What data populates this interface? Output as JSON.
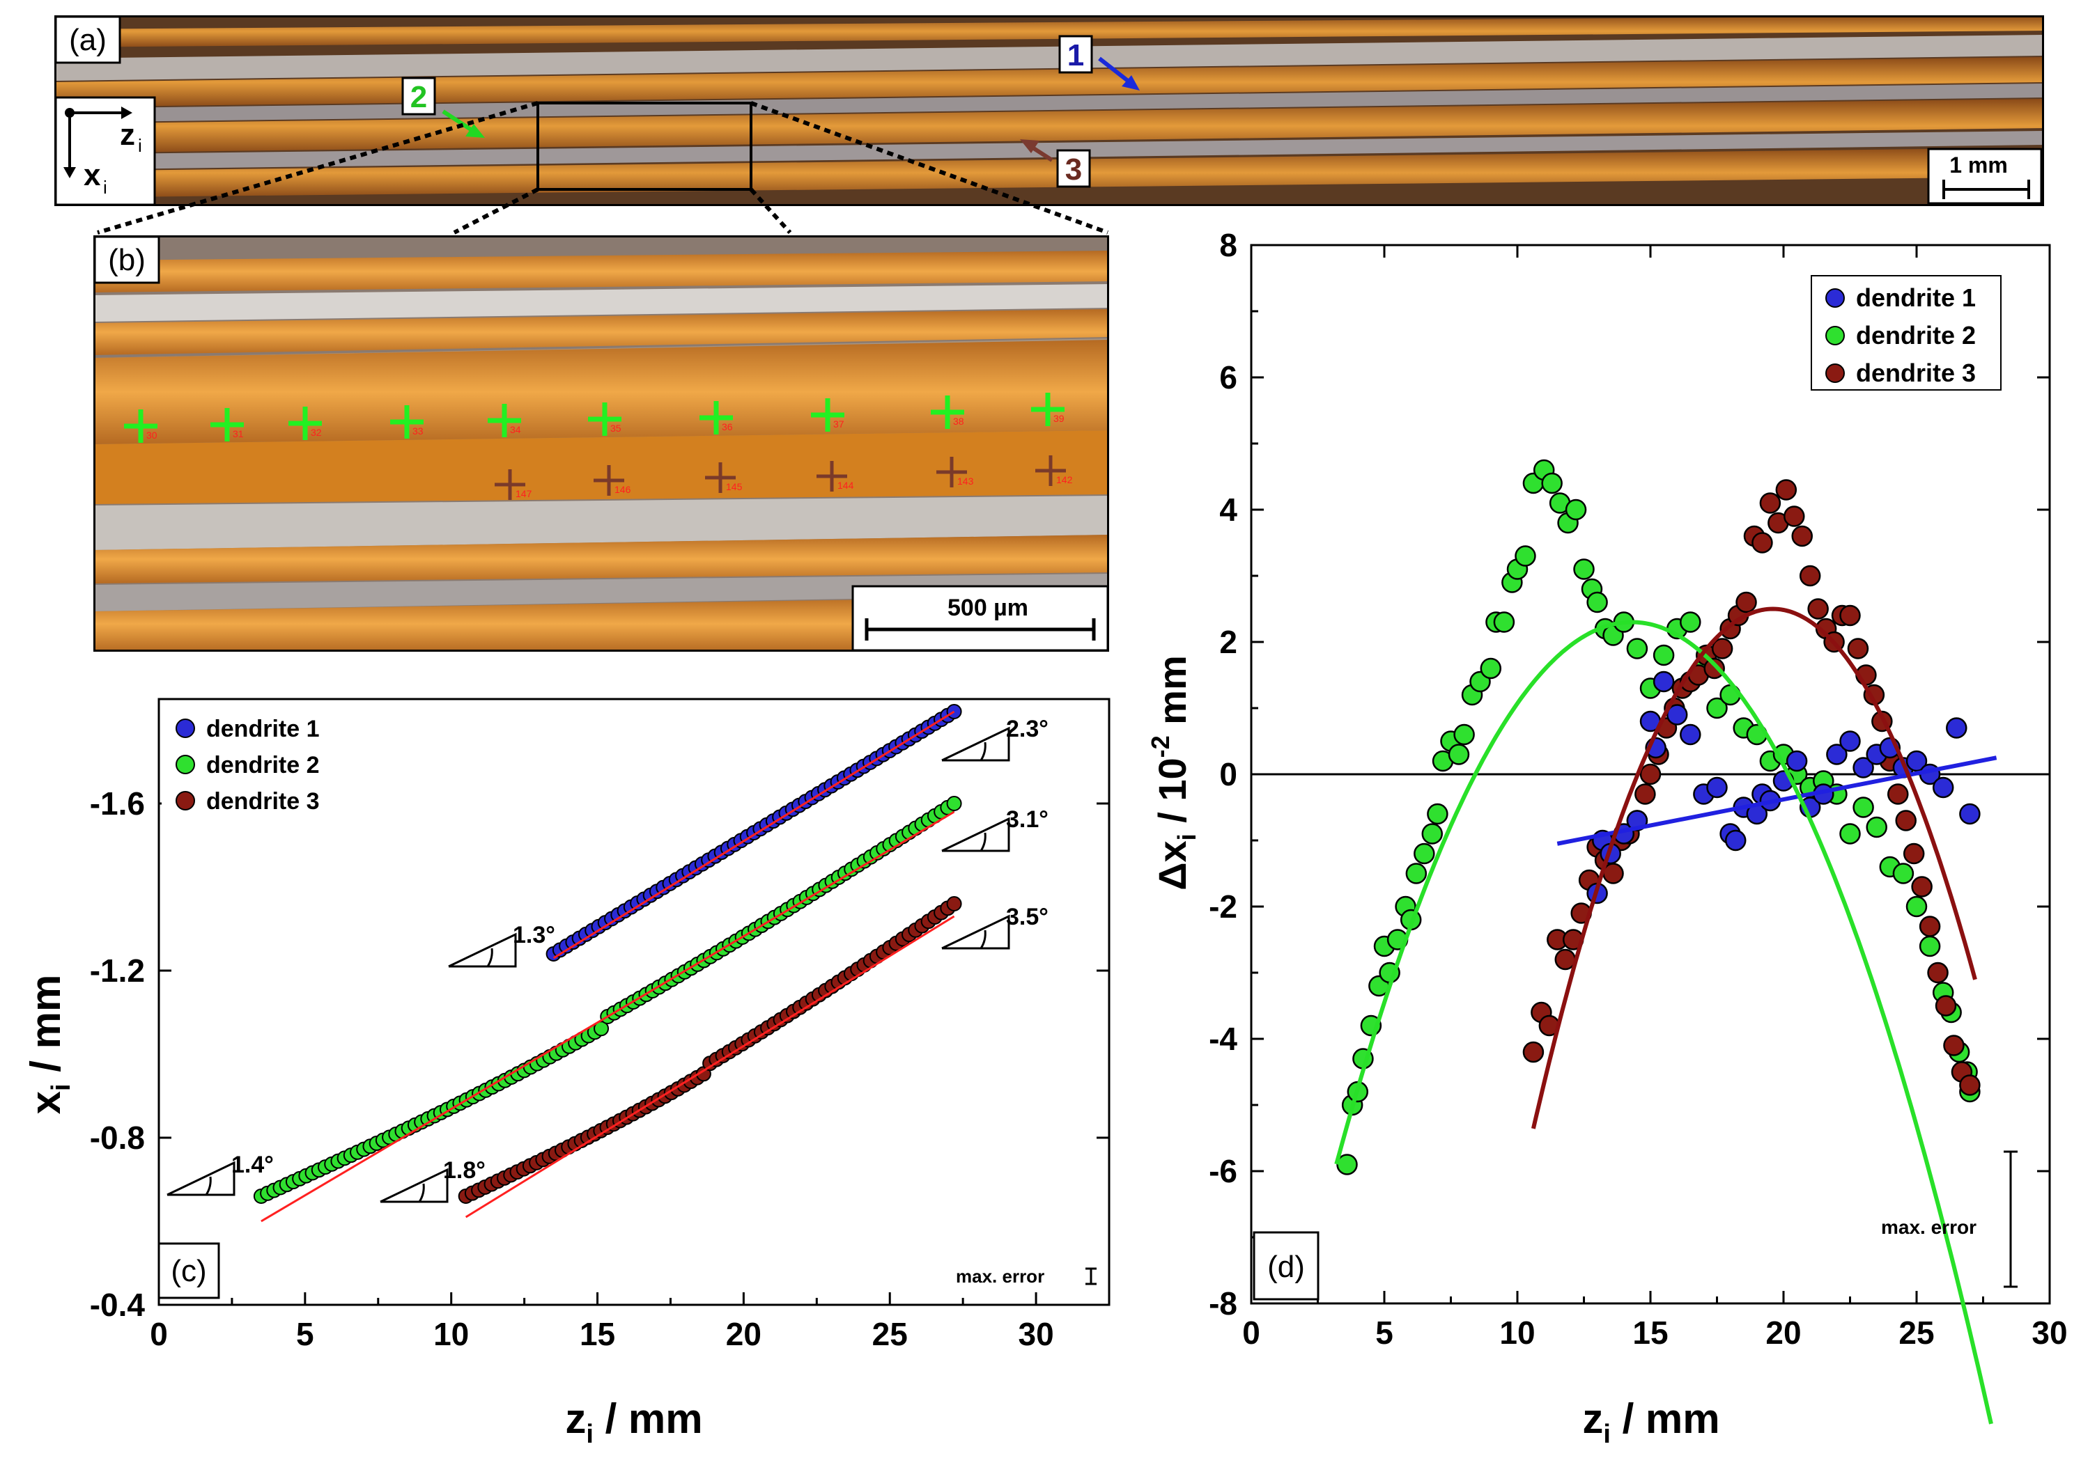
{
  "panel_labels": {
    "a": "(a)",
    "b": "(b)",
    "c": "(c)",
    "d": "(d)"
  },
  "micrograph": {
    "axis_z": "z",
    "axis_x": "x",
    "axis_sub": "i",
    "arrow_labels": [
      "1",
      "2",
      "3"
    ],
    "scale_bar_a": "1 mm",
    "scale_bar_b": "500 µm",
    "green_marks": [
      "30",
      "31",
      "32",
      "33",
      "34",
      "35",
      "36",
      "37",
      "38",
      "39"
    ],
    "red_marks": [
      "147",
      "146",
      "145",
      "144",
      "143",
      "142"
    ],
    "colors": {
      "amber": "#d8892a",
      "dark": "#6b3b14",
      "green": "#2aff2a",
      "brown": "#7a2a1a"
    }
  },
  "legend": [
    "dendrite 1",
    "dendrite 2",
    "dendrite 3"
  ],
  "colors": {
    "d1": "#2b2bd6",
    "d2": "#2fe02f",
    "d3": "#8a1a12",
    "fit_red": "#ff2020",
    "fit_green": "#28e028",
    "fit_blue": "#2020e0",
    "fit_dark": "#8b1010"
  },
  "chart_data": [
    {
      "panel": "c",
      "type": "scatter",
      "title": "",
      "xlabel_main": "z",
      "xlabel_sub": "i",
      "xlabel_unit": " / mm",
      "ylabel_main": "x",
      "ylabel_sub": "i",
      "ylabel_unit": " / mm",
      "xlim": [
        0,
        32.5
      ],
      "ylim": [
        -0.4,
        -1.85
      ],
      "yaxis_inverted": true,
      "xticks": [
        0,
        5,
        10,
        15,
        20,
        25,
        30
      ],
      "xtick_labels": [
        "0",
        "5",
        "10",
        "15",
        "20",
        "25",
        "30"
      ],
      "yticks": [
        -0.4,
        -0.8,
        -1.2,
        -1.6
      ],
      "ytick_labels": [
        "-0.4",
        "-0.8",
        "-1.2",
        "-1.6"
      ],
      "series": [
        {
          "name": "dendrite 1",
          "z_range": [
            13.5,
            27.2
          ],
          "x_start": -1.24,
          "x_end": -1.82
        },
        {
          "name": "dendrite 2",
          "z_range": [
            3.5,
            27.2
          ],
          "x_start": -0.66,
          "x_end": -1.6
        },
        {
          "name": "dendrite 3",
          "z_range": [
            10.5,
            27.2
          ],
          "x_start": -0.66,
          "x_end": -1.36
        }
      ],
      "fit_lines": [
        {
          "series": "dendrite 1",
          "z": [
            13.5,
            27.2
          ],
          "x": [
            -1.23,
            -1.82
          ]
        },
        {
          "series": "dendrite 2",
          "z": [
            3.5,
            27.2
          ],
          "x": [
            -0.6,
            -1.58
          ]
        },
        {
          "series": "dendrite 3",
          "z": [
            10.5,
            27.2
          ],
          "x": [
            -0.61,
            -1.33
          ]
        }
      ],
      "angle_annotations": [
        "1.3°",
        "2.3°",
        "3.1°",
        "1.4°",
        "1.8°",
        "3.5°"
      ],
      "note": "max. error"
    },
    {
      "panel": "d",
      "type": "scatter",
      "title": "",
      "xlabel_main": "z",
      "xlabel_sub": "i",
      "xlabel_unit": " / mm",
      "ylabel_prefix": "Δx",
      "ylabel_sub": "i",
      "ylabel_mid": " / 10",
      "ylabel_exp": "-2",
      "ylabel_unit": " mm",
      "xlim": [
        0,
        30
      ],
      "ylim": [
        -8,
        8
      ],
      "xticks": [
        0,
        5,
        10,
        15,
        20,
        25,
        30
      ],
      "xtick_labels": [
        "0",
        "5",
        "10",
        "15",
        "20",
        "25",
        "30"
      ],
      "yticks": [
        -8,
        -6,
        -4,
        -2,
        0,
        2,
        4,
        6,
        8
      ],
      "ytick_labels": [
        "-8",
        "-6",
        "-4",
        "-2",
        "0",
        "2",
        "4",
        "6",
        "8"
      ],
      "series": [
        {
          "name": "dendrite 1",
          "x": [
            13,
            13.2,
            13.5,
            14,
            14.5,
            15,
            15.2,
            15.5,
            16,
            16.5,
            17,
            17.5,
            18,
            18.2,
            18.5,
            19,
            19.2,
            19.5,
            20,
            20.5,
            21,
            21.5,
            22,
            22.5,
            23,
            23.5,
            24,
            24.5,
            25,
            25.5,
            26,
            26.5,
            27
          ],
          "y": [
            -1.8,
            -1.0,
            -1.2,
            -0.9,
            -0.7,
            0.8,
            0.4,
            1.4,
            0.9,
            0.6,
            -0.3,
            -0.2,
            -0.9,
            -1.0,
            -0.5,
            -0.6,
            -0.3,
            -0.4,
            -0.1,
            0.2,
            -0.5,
            -0.3,
            0.3,
            0.5,
            0.1,
            0.3,
            0.4,
            0.1,
            0.2,
            0.0,
            -0.2,
            0.7,
            -0.6
          ]
        },
        {
          "name": "dendrite 2",
          "x": [
            3.6,
            3.8,
            4.0,
            4.2,
            4.5,
            4.8,
            5.0,
            5.2,
            5.5,
            5.8,
            6.0,
            6.2,
            6.5,
            6.8,
            7.0,
            7.2,
            7.5,
            7.8,
            8.0,
            8.3,
            8.6,
            9.0,
            9.2,
            9.5,
            9.8,
            10.0,
            10.3,
            10.6,
            11.0,
            11.3,
            11.6,
            11.9,
            12.2,
            12.5,
            12.8,
            13.0,
            13.3,
            13.6,
            14.0,
            14.5,
            15.0,
            15.5,
            16.0,
            16.5,
            17.0,
            17.5,
            18.0,
            18.5,
            19.0,
            19.5,
            20.0,
            20.5,
            21.0,
            21.5,
            22.0,
            22.5,
            23.0,
            23.5,
            24.0,
            24.5,
            25.0,
            25.5,
            26.0,
            26.3,
            26.6,
            26.9,
            27.0
          ],
          "y": [
            -5.9,
            -5.0,
            -4.8,
            -4.3,
            -3.8,
            -3.2,
            -2.6,
            -3.0,
            -2.5,
            -2.0,
            -2.2,
            -1.5,
            -1.2,
            -0.9,
            -0.6,
            0.2,
            0.5,
            0.3,
            0.6,
            1.2,
            1.4,
            1.6,
            2.3,
            2.3,
            2.9,
            3.1,
            3.3,
            4.4,
            4.6,
            4.4,
            4.1,
            3.8,
            4.0,
            3.1,
            2.8,
            2.6,
            2.2,
            2.1,
            2.3,
            1.9,
            1.3,
            1.8,
            2.2,
            2.3,
            1.6,
            1.0,
            1.2,
            0.7,
            0.6,
            0.2,
            0.3,
            0.0,
            -0.2,
            -0.1,
            -0.3,
            -0.9,
            -0.5,
            -0.8,
            -1.4,
            -1.5,
            -2.0,
            -2.6,
            -3.3,
            -3.6,
            -4.2,
            -4.5,
            -4.8
          ]
        },
        {
          "name": "dendrite 3",
          "x": [
            10.6,
            10.9,
            11.2,
            11.5,
            11.8,
            12.1,
            12.4,
            12.7,
            13.0,
            13.3,
            13.6,
            13.9,
            14.2,
            14.5,
            14.8,
            15.0,
            15.3,
            15.6,
            15.9,
            16.2,
            16.5,
            16.8,
            17.1,
            17.4,
            17.7,
            18.0,
            18.3,
            18.6,
            18.9,
            19.2,
            19.5,
            19.8,
            20.1,
            20.4,
            20.7,
            21.0,
            21.3,
            21.6,
            21.9,
            22.2,
            22.5,
            22.8,
            23.1,
            23.4,
            23.7,
            24.0,
            24.3,
            24.6,
            24.9,
            25.2,
            25.5,
            25.8,
            26.1,
            26.4,
            26.7,
            27.0
          ],
          "y": [
            -4.2,
            -3.6,
            -3.8,
            -2.5,
            -2.8,
            -2.5,
            -2.1,
            -1.6,
            -1.1,
            -1.3,
            -1.5,
            -1.0,
            -0.9,
            -0.7,
            -0.3,
            0.0,
            0.3,
            0.7,
            1.0,
            1.3,
            1.4,
            1.5,
            1.8,
            1.6,
            1.9,
            2.2,
            2.4,
            2.6,
            3.6,
            3.5,
            4.1,
            3.8,
            4.3,
            3.9,
            3.6,
            3.0,
            2.5,
            2.2,
            2.0,
            2.4,
            2.4,
            1.9,
            1.5,
            1.2,
            0.8,
            0.2,
            -0.3,
            -0.7,
            -1.2,
            -1.7,
            -2.3,
            -3.0,
            -3.5,
            -4.1,
            -4.5,
            -4.7
          ]
        }
      ],
      "fit_lines": [
        {
          "series": "dendrite 1",
          "kind": "linear",
          "z": [
            11.5,
            28
          ],
          "y": [
            -1.05,
            0.25
          ]
        },
        {
          "series": "dendrite 2",
          "kind": "parabola",
          "vertex_z": 14.3,
          "vertex_y": 2.3,
          "z_range": [
            3.2,
            27.8
          ],
          "a": -0.0665
        },
        {
          "series": "dendrite 3",
          "kind": "parabola",
          "vertex_z": 19.6,
          "vertex_y": 2.5,
          "z_range": [
            10.6,
            27.2
          ],
          "a": -0.097
        }
      ],
      "zero_line": 0,
      "note": "max. error"
    }
  ]
}
